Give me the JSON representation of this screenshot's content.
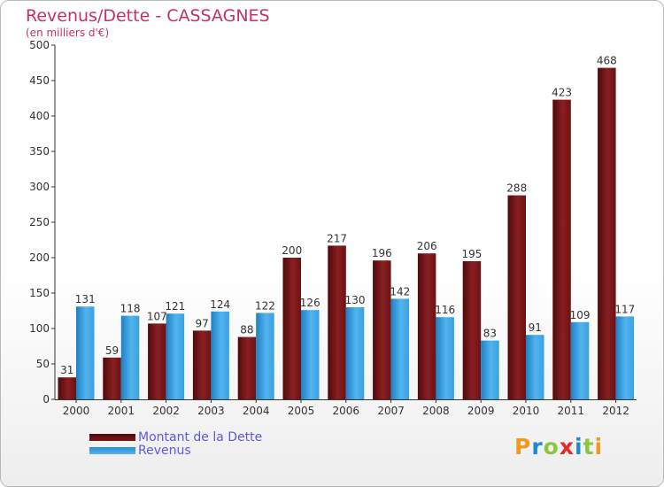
{
  "title": "Revenus/Dette - CASSAGNES",
  "subtitle": "(en milliers d'€)",
  "legend": [
    "Montant de la Dette",
    "Revenus"
  ],
  "logo": "Proxiti",
  "colors": {
    "dette": "#7a1618",
    "revenus": "#3ba0e3",
    "title": "#c63066",
    "legend_text": "#5a5ae6"
  },
  "chart_data": {
    "type": "bar",
    "categories": [
      "2000",
      "2001",
      "2002",
      "2003",
      "2004",
      "2005",
      "2006",
      "2007",
      "2008",
      "2009",
      "2010",
      "2011",
      "2012"
    ],
    "series": [
      {
        "name": "Montant de la Dette",
        "values": [
          31,
          59,
          107,
          97,
          88,
          200,
          217,
          196,
          206,
          195,
          288,
          423,
          468
        ]
      },
      {
        "name": "Revenus",
        "values": [
          131,
          118,
          121,
          124,
          122,
          126,
          130,
          142,
          116,
          83,
          91,
          109,
          117
        ]
      }
    ],
    "yticks": [
      0,
      50,
      100,
      150,
      200,
      250,
      300,
      350,
      400,
      450,
      500
    ],
    "ylim": [
      0,
      500
    ],
    "grid": false,
    "legend_position": "bottom-left"
  }
}
